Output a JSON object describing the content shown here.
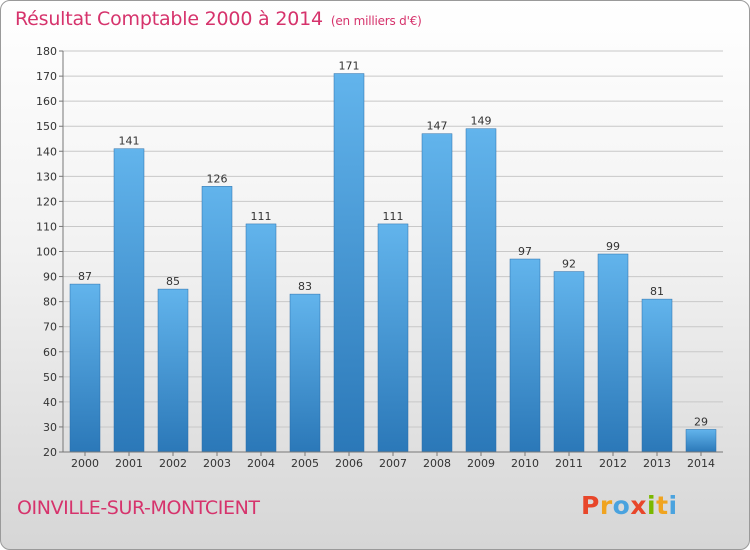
{
  "header": {
    "title": "Résultat Comptable 2000 à 2014",
    "subtitle": "(en milliers d'€)"
  },
  "footer": {
    "commune": "OINVILLE-SUR-MONTCIENT",
    "logo_letters": [
      "P",
      "r",
      "o",
      "x",
      "i",
      "t",
      "i"
    ],
    "logo_colors": [
      "#e8462a",
      "#f0a420",
      "#4aa3df",
      "#e8462a",
      "#7ab800",
      "#f0a420",
      "#4aa3df"
    ]
  },
  "colors": {
    "bar_top": "#62b4ec",
    "bar_bottom": "#2b78b8",
    "grid": "#c8c8c8",
    "title": "#d6336c"
  },
  "chart_data": {
    "type": "bar",
    "title": "Résultat Comptable 2000 à 2014",
    "xlabel": "",
    "ylabel": "",
    "unit": "milliers d'€",
    "ylim": [
      20,
      180
    ],
    "ytick_step": 10,
    "grid": true,
    "categories": [
      "2000",
      "2001",
      "2002",
      "2003",
      "2004",
      "2005",
      "2006",
      "2007",
      "2008",
      "2009",
      "2010",
      "2011",
      "2012",
      "2013",
      "2014"
    ],
    "values": [
      87,
      141,
      85,
      126,
      111,
      83,
      171,
      111,
      147,
      149,
      97,
      92,
      99,
      81,
      29
    ]
  }
}
